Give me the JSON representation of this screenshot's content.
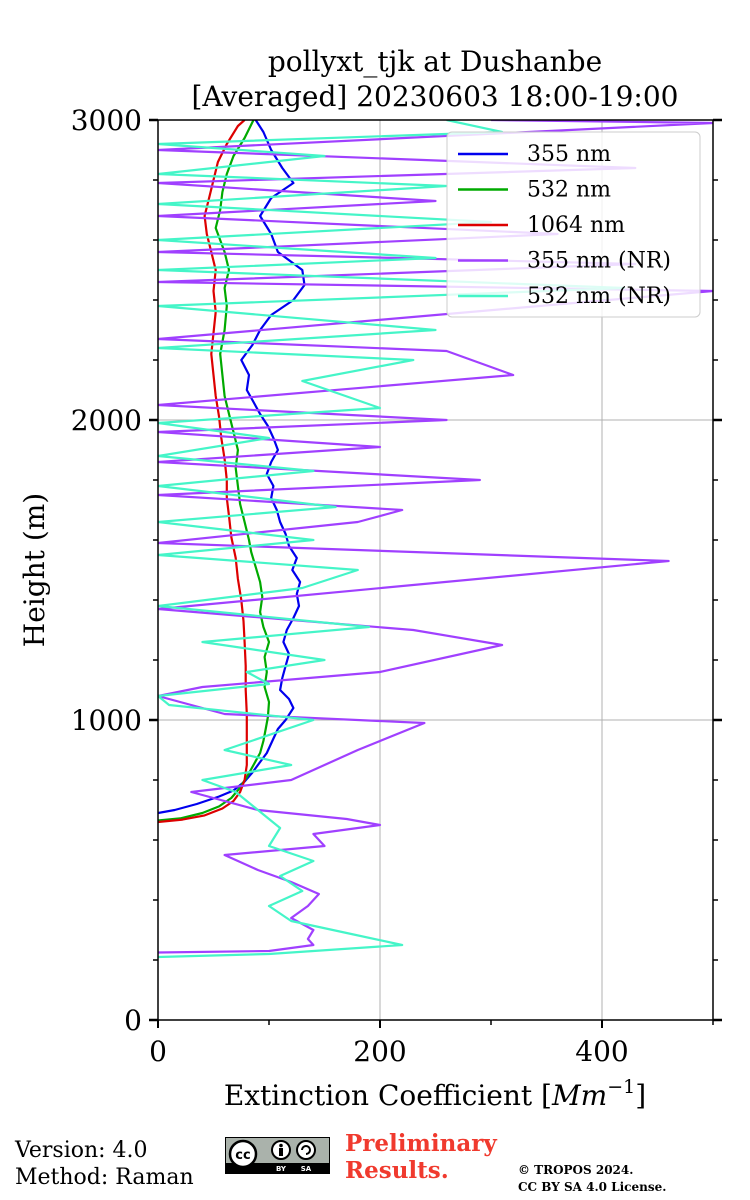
{
  "chart_data": {
    "type": "line",
    "title_line1": "pollyxt_tjk at Dushanbe",
    "title_line2": "[Averaged] 20230603 18:00-19:00",
    "xlabel_prefix": "Extinction Coefficient [",
    "xlabel_unit": "Mm",
    "xlabel_exp": "−1",
    "xlabel_suffix": "]",
    "ylabel": "Height (m)",
    "xlim": [
      0,
      500
    ],
    "ylim": [
      0,
      3000
    ],
    "x_ticks": [
      0,
      200,
      400
    ],
    "y_ticks": [
      0,
      1000,
      2000,
      3000
    ],
    "grid": true,
    "legend_position": "top-right",
    "series": [
      {
        "name": "355 nm",
        "color": "#0000ee",
        "points": [
          [
            0,
            690
          ],
          [
            15,
            700
          ],
          [
            35,
            720
          ],
          [
            55,
            745
          ],
          [
            68,
            765
          ],
          [
            78,
            795
          ],
          [
            85,
            825
          ],
          [
            92,
            860
          ],
          [
            98,
            890
          ],
          [
            103,
            930
          ],
          [
            108,
            970
          ],
          [
            115,
            1000
          ],
          [
            122,
            1040
          ],
          [
            118,
            1070
          ],
          [
            110,
            1100
          ],
          [
            112,
            1140
          ],
          [
            115,
            1180
          ],
          [
            118,
            1220
          ],
          [
            113,
            1260
          ],
          [
            116,
            1300
          ],
          [
            122,
            1340
          ],
          [
            127,
            1380
          ],
          [
            125,
            1420
          ],
          [
            128,
            1460
          ],
          [
            121,
            1500
          ],
          [
            125,
            1540
          ],
          [
            118,
            1580
          ],
          [
            115,
            1620
          ],
          [
            110,
            1660
          ],
          [
            107,
            1700
          ],
          [
            102,
            1740
          ],
          [
            104,
            1780
          ],
          [
            98,
            1820
          ],
          [
            102,
            1860
          ],
          [
            108,
            1900
          ],
          [
            104,
            1940
          ],
          [
            99,
            1980
          ],
          [
            92,
            2020
          ],
          [
            86,
            2060
          ],
          [
            80,
            2100
          ],
          [
            82,
            2150
          ],
          [
            75,
            2200
          ],
          [
            85,
            2250
          ],
          [
            92,
            2300
          ],
          [
            102,
            2350
          ],
          [
            122,
            2400
          ],
          [
            132,
            2450
          ],
          [
            130,
            2500
          ],
          [
            108,
            2560
          ],
          [
            102,
            2620
          ],
          [
            92,
            2680
          ],
          [
            102,
            2740
          ],
          [
            122,
            2790
          ],
          [
            112,
            2840
          ],
          [
            102,
            2900
          ],
          [
            95,
            2960
          ],
          [
            88,
            3000
          ]
        ]
      },
      {
        "name": "532 nm",
        "color": "#00aa00",
        "points": [
          [
            0,
            665
          ],
          [
            20,
            672
          ],
          [
            40,
            690
          ],
          [
            55,
            712
          ],
          [
            66,
            740
          ],
          [
            73,
            770
          ],
          [
            80,
            810
          ],
          [
            86,
            850
          ],
          [
            92,
            890
          ],
          [
            95,
            930
          ],
          [
            97,
            970
          ],
          [
            99,
            1010
          ],
          [
            100,
            1060
          ],
          [
            96,
            1110
          ],
          [
            98,
            1160
          ],
          [
            96,
            1210
          ],
          [
            100,
            1260
          ],
          [
            95,
            1310
          ],
          [
            92,
            1360
          ],
          [
            94,
            1410
          ],
          [
            92,
            1460
          ],
          [
            88,
            1510
          ],
          [
            84,
            1560
          ],
          [
            82,
            1600
          ],
          [
            78,
            1660
          ],
          [
            74,
            1720
          ],
          [
            72,
            1780
          ],
          [
            70,
            1840
          ],
          [
            72,
            1900
          ],
          [
            68,
            1960
          ],
          [
            64,
            2020
          ],
          [
            60,
            2080
          ],
          [
            58,
            2150
          ],
          [
            56,
            2220
          ],
          [
            60,
            2300
          ],
          [
            62,
            2380
          ],
          [
            60,
            2440
          ],
          [
            64,
            2500
          ],
          [
            60,
            2560
          ],
          [
            52,
            2640
          ],
          [
            56,
            2700
          ],
          [
            58,
            2760
          ],
          [
            62,
            2820
          ],
          [
            68,
            2880
          ],
          [
            78,
            2940
          ],
          [
            86,
            3000
          ]
        ]
      },
      {
        "name": "1064 nm",
        "color": "#dd0000",
        "points": [
          [
            0,
            660
          ],
          [
            22,
            668
          ],
          [
            42,
            682
          ],
          [
            58,
            705
          ],
          [
            68,
            730
          ],
          [
            74,
            760
          ],
          [
            78,
            800
          ],
          [
            80,
            850
          ],
          [
            80,
            900
          ],
          [
            80,
            960
          ],
          [
            80,
            1020
          ],
          [
            79,
            1100
          ],
          [
            79,
            1180
          ],
          [
            78,
            1260
          ],
          [
            77,
            1330
          ],
          [
            75,
            1400
          ],
          [
            72,
            1470
          ],
          [
            70,
            1540
          ],
          [
            66,
            1610
          ],
          [
            64,
            1680
          ],
          [
            62,
            1740
          ],
          [
            62,
            1800
          ],
          [
            60,
            1870
          ],
          [
            57,
            1940
          ],
          [
            55,
            2010
          ],
          [
            52,
            2080
          ],
          [
            50,
            2150
          ],
          [
            48,
            2220
          ],
          [
            50,
            2290
          ],
          [
            52,
            2360
          ],
          [
            50,
            2430
          ],
          [
            52,
            2500
          ],
          [
            48,
            2560
          ],
          [
            44,
            2620
          ],
          [
            42,
            2680
          ],
          [
            46,
            2740
          ],
          [
            50,
            2800
          ],
          [
            54,
            2860
          ],
          [
            62,
            2920
          ],
          [
            72,
            2980
          ],
          [
            78,
            3000
          ]
        ]
      },
      {
        "name": "355 nm (NR)",
        "color": "#a040ff",
        "points": [
          [
            0,
            225
          ],
          [
            100,
            230
          ],
          [
            140,
            250
          ],
          [
            135,
            270
          ],
          [
            140,
            300
          ],
          [
            120,
            340
          ],
          [
            135,
            380
          ],
          [
            145,
            420
          ],
          [
            120,
            460
          ],
          [
            90,
            500
          ],
          [
            60,
            550
          ],
          [
            150,
            580
          ],
          [
            140,
            620
          ],
          [
            200,
            650
          ],
          [
            170,
            670
          ],
          [
            90,
            700
          ],
          [
            30,
            760
          ],
          [
            120,
            800
          ],
          [
            150,
            850
          ],
          [
            180,
            900
          ],
          [
            240,
            990
          ],
          [
            60,
            1020
          ],
          [
            0,
            1080
          ],
          [
            40,
            1110
          ],
          [
            200,
            1160
          ],
          [
            310,
            1250
          ],
          [
            230,
            1300
          ],
          [
            0,
            1370
          ],
          [
            460,
            1530
          ],
          [
            0,
            1590
          ],
          [
            180,
            1660
          ],
          [
            220,
            1700
          ],
          [
            0,
            1750
          ],
          [
            290,
            1800
          ],
          [
            0,
            1860
          ],
          [
            200,
            1910
          ],
          [
            0,
            1960
          ],
          [
            260,
            2000
          ],
          [
            0,
            2050
          ],
          [
            320,
            2150
          ],
          [
            260,
            2230
          ],
          [
            0,
            2270
          ],
          [
            500,
            2430
          ],
          [
            0,
            2460
          ],
          [
            430,
            2520
          ],
          [
            0,
            2560
          ],
          [
            360,
            2620
          ],
          [
            0,
            2680
          ],
          [
            250,
            2730
          ],
          [
            0,
            2790
          ],
          [
            430,
            2840
          ],
          [
            0,
            2900
          ],
          [
            500,
            2990
          ],
          [
            300,
            3000
          ]
        ]
      },
      {
        "name": "532 nm (NR)",
        "color": "#45f5c8",
        "points": [
          [
            0,
            210
          ],
          [
            100,
            220
          ],
          [
            220,
            250
          ],
          [
            170,
            290
          ],
          [
            120,
            330
          ],
          [
            100,
            380
          ],
          [
            130,
            430
          ],
          [
            110,
            480
          ],
          [
            140,
            530
          ],
          [
            100,
            580
          ],
          [
            110,
            640
          ],
          [
            90,
            700
          ],
          [
            70,
            760
          ],
          [
            40,
            800
          ],
          [
            120,
            850
          ],
          [
            60,
            900
          ],
          [
            140,
            1000
          ],
          [
            10,
            1050
          ],
          [
            0,
            1080
          ],
          [
            100,
            1120
          ],
          [
            80,
            1160
          ],
          [
            150,
            1200
          ],
          [
            40,
            1260
          ],
          [
            190,
            1310
          ],
          [
            0,
            1380
          ],
          [
            130,
            1440
          ],
          [
            180,
            1500
          ],
          [
            0,
            1550
          ],
          [
            140,
            1600
          ],
          [
            0,
            1660
          ],
          [
            160,
            1710
          ],
          [
            0,
            1780
          ],
          [
            140,
            1830
          ],
          [
            0,
            1880
          ],
          [
            100,
            1940
          ],
          [
            0,
            1990
          ],
          [
            200,
            2040
          ],
          [
            130,
            2130
          ],
          [
            230,
            2200
          ],
          [
            0,
            2240
          ],
          [
            250,
            2300
          ],
          [
            0,
            2380
          ],
          [
            420,
            2440
          ],
          [
            0,
            2500
          ],
          [
            250,
            2540
          ],
          [
            0,
            2600
          ],
          [
            300,
            2660
          ],
          [
            0,
            2720
          ],
          [
            260,
            2780
          ],
          [
            0,
            2820
          ],
          [
            150,
            2880
          ],
          [
            0,
            2920
          ],
          [
            310,
            2960
          ],
          [
            260,
            3000
          ]
        ]
      }
    ]
  },
  "footer": {
    "version": "Version: 4.0",
    "method": "Method: Raman",
    "preliminary_line1": "Preliminary",
    "preliminary_line2": "Results.",
    "copyright_line1": "© TROPOS 2024.",
    "copyright_line2": "CC BY SA 4.0 License.",
    "license_badge": {
      "logo": "cc",
      "by": "BY",
      "sa": "SA"
    }
  }
}
